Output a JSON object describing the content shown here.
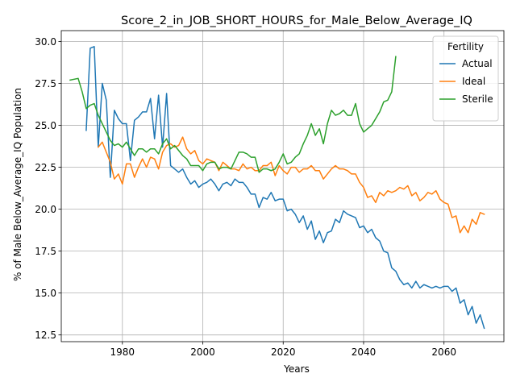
{
  "chart_data": {
    "type": "line",
    "title": "Score_2_in_JOB_SHORT_HOURS_for_Male_Below_Average_IQ",
    "xlabel": "Years",
    "ylabel": "% of Male Below_Average_IQ Population",
    "xlim": [
      1964.8,
      2074.9
    ],
    "ylim": [
      12.1,
      30.65
    ],
    "xticks": [
      1980,
      2000,
      2020,
      2040,
      2060
    ],
    "yticks": [
      12.5,
      15.0,
      17.5,
      20.0,
      22.5,
      25.0,
      27.5,
      30.0
    ],
    "xtick_labels": [
      "1980",
      "2000",
      "2020",
      "2040",
      "2060"
    ],
    "ytick_labels": [
      "12.5",
      "15.0",
      "17.5",
      "20.0",
      "22.5",
      "25.0",
      "27.5",
      "30.0"
    ],
    "grid": true,
    "legend": {
      "title": "Fertility",
      "position": "top-right"
    },
    "colors": {
      "Actual": "#1f77b4",
      "Ideal": "#ff7f0e",
      "Sterile": "#2ca02c"
    },
    "series": [
      {
        "name": "Actual",
        "x": [
          1971,
          1972,
          1973,
          1974,
          1975,
          1976,
          1977,
          1978,
          1979,
          1980,
          1981,
          1982,
          1983,
          1984,
          1985,
          1986,
          1987,
          1988,
          1989,
          1990,
          1991,
          1992,
          1993,
          1994,
          1995,
          1996,
          1997,
          1998,
          1999,
          2000,
          2001,
          2002,
          2003,
          2004,
          2005,
          2006,
          2007,
          2008,
          2009,
          2010,
          2011,
          2012,
          2013,
          2014,
          2015,
          2016,
          2017,
          2018,
          2019,
          2020,
          2021,
          2022,
          2023,
          2024,
          2025,
          2026,
          2027,
          2028,
          2029,
          2030,
          2031,
          2032,
          2033,
          2034,
          2035,
          2036,
          2037,
          2038,
          2039,
          2040,
          2041,
          2042,
          2043,
          2044,
          2045,
          2046,
          2047,
          2048,
          2049,
          2050,
          2051,
          2052,
          2053,
          2054,
          2055,
          2056,
          2057,
          2058,
          2059,
          2060,
          2061,
          2062,
          2063,
          2064,
          2065,
          2066,
          2067,
          2068,
          2069,
          2070
        ],
        "values": [
          24.7,
          29.6,
          29.7,
          23.7,
          27.5,
          26.5,
          21.9,
          25.9,
          25.4,
          25.1,
          25.1,
          22.9,
          25.3,
          25.5,
          25.8,
          25.8,
          26.6,
          24.2,
          26.8,
          23.7,
          26.9,
          22.6,
          22.4,
          22.2,
          22.4,
          21.9,
          21.5,
          21.7,
          21.3,
          21.5,
          21.6,
          21.8,
          21.5,
          21.1,
          21.5,
          21.6,
          21.4,
          21.8,
          21.6,
          21.6,
          21.3,
          20.9,
          20.9,
          20.1,
          20.7,
          20.6,
          21.0,
          20.5,
          20.6,
          20.6,
          19.9,
          20.0,
          19.7,
          19.2,
          19.6,
          18.8,
          19.3,
          18.2,
          18.7,
          18.0,
          18.6,
          18.7,
          19.4,
          19.2,
          19.9,
          19.7,
          19.6,
          19.5,
          18.9,
          19.0,
          18.6,
          18.8,
          18.3,
          18.1,
          17.5,
          17.4,
          16.5,
          16.3,
          15.8,
          15.5,
          15.6,
          15.3,
          15.7,
          15.3,
          15.5,
          15.4,
          15.3,
          15.4,
          15.3,
          15.4,
          15.4,
          15.1,
          15.3,
          14.4,
          14.6,
          13.7,
          14.2,
          13.2,
          13.7,
          12.9
        ]
      },
      {
        "name": "Ideal",
        "x": [
          1974,
          1975,
          1976,
          1977,
          1978,
          1979,
          1980,
          1981,
          1982,
          1983,
          1984,
          1985,
          1986,
          1987,
          1988,
          1989,
          1990,
          1991,
          1992,
          1993,
          1994,
          1995,
          1996,
          1997,
          1998,
          1999,
          2000,
          2001,
          2002,
          2003,
          2004,
          2005,
          2006,
          2007,
          2008,
          2009,
          2010,
          2011,
          2012,
          2013,
          2014,
          2015,
          2016,
          2017,
          2018,
          2019,
          2020,
          2021,
          2022,
          2023,
          2024,
          2025,
          2026,
          2027,
          2028,
          2029,
          2030,
          2031,
          2032,
          2033,
          2034,
          2035,
          2036,
          2037,
          2038,
          2039,
          2040,
          2041,
          2042,
          2043,
          2044,
          2045,
          2046,
          2047,
          2048,
          2049,
          2050,
          2051,
          2052,
          2053,
          2054,
          2055,
          2056,
          2057,
          2058,
          2059,
          2060,
          2061,
          2062,
          2063,
          2064,
          2065,
          2066,
          2067,
          2068,
          2069,
          2070
        ],
        "values": [
          23.7,
          24.0,
          23.4,
          22.8,
          21.8,
          22.1,
          21.5,
          22.7,
          22.7,
          21.9,
          22.5,
          23.0,
          22.5,
          23.1,
          23.0,
          22.4,
          23.4,
          23.8,
          23.9,
          23.7,
          23.8,
          24.3,
          23.6,
          23.3,
          23.5,
          22.9,
          22.7,
          23.0,
          22.9,
          22.8,
          22.3,
          22.8,
          22.6,
          22.4,
          22.4,
          22.3,
          22.7,
          22.4,
          22.5,
          22.3,
          22.3,
          22.6,
          22.6,
          22.8,
          22.0,
          22.6,
          22.3,
          22.1,
          22.5,
          22.5,
          22.2,
          22.4,
          22.4,
          22.6,
          22.3,
          22.3,
          21.8,
          22.1,
          22.4,
          22.6,
          22.4,
          22.4,
          22.3,
          22.1,
          22.1,
          21.6,
          21.3,
          20.7,
          20.8,
          20.4,
          21.0,
          20.8,
          21.1,
          21.0,
          21.1,
          21.3,
          21.2,
          21.4,
          20.8,
          21.0,
          20.5,
          20.7,
          21.0,
          20.9,
          21.1,
          20.6,
          20.4,
          20.3,
          19.5,
          19.6,
          18.6,
          19.0,
          18.6,
          19.4,
          19.1,
          19.8,
          19.7
        ]
      },
      {
        "name": "Sterile",
        "x": [
          1967,
          1969,
          1970,
          1971,
          1972,
          1973,
          1974,
          1975,
          1976,
          1977,
          1978,
          1979,
          1980,
          1981,
          1982,
          1983,
          1984,
          1985,
          1986,
          1987,
          1988,
          1989,
          1990,
          1991,
          1992,
          1993,
          1994,
          1995,
          1996,
          1997,
          1998,
          1999,
          2000,
          2001,
          2002,
          2003,
          2004,
          2005,
          2006,
          2007,
          2008,
          2009,
          2010,
          2011,
          2012,
          2013,
          2014,
          2015,
          2016,
          2017,
          2018,
          2019,
          2020,
          2021,
          2022,
          2023,
          2024,
          2025,
          2026,
          2027,
          2028,
          2029,
          2030,
          2031,
          2032,
          2033,
          2034,
          2035,
          2036,
          2037,
          2038,
          2039,
          2040,
          2041,
          2042,
          2043,
          2044,
          2045,
          2046,
          2047,
          2048
        ],
        "values": [
          27.7,
          27.8,
          27.0,
          26.0,
          26.2,
          26.3,
          25.6,
          25.1,
          24.6,
          24.1,
          23.8,
          23.9,
          23.7,
          24.0,
          23.6,
          23.2,
          23.6,
          23.6,
          23.4,
          23.6,
          23.6,
          23.3,
          23.9,
          24.2,
          23.6,
          23.8,
          23.5,
          23.2,
          23.0,
          22.6,
          22.6,
          22.6,
          22.3,
          22.7,
          22.8,
          22.8,
          22.4,
          22.5,
          22.5,
          22.4,
          22.9,
          23.4,
          23.4,
          23.3,
          23.1,
          23.1,
          22.2,
          22.4,
          22.4,
          22.3,
          22.4,
          22.8,
          23.3,
          22.7,
          22.8,
          23.1,
          23.3,
          23.9,
          24.4,
          25.1,
          24.4,
          24.8,
          23.9,
          25.1,
          25.9,
          25.6,
          25.7,
          25.9,
          25.6,
          25.6,
          26.3,
          25.1,
          24.6,
          24.8,
          25.0,
          25.4,
          25.8,
          26.4,
          26.5,
          27.0,
          29.1
        ]
      }
    ]
  }
}
